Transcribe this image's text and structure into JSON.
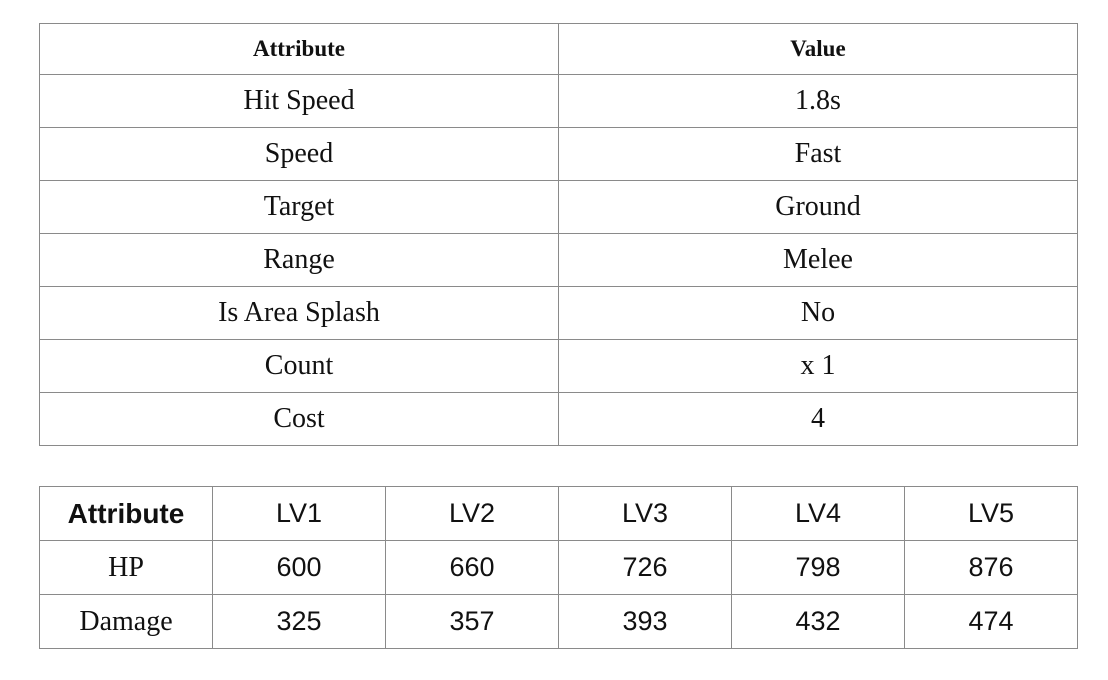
{
  "attributes_table": {
    "headers": [
      "Attribute",
      "Value"
    ],
    "rows": [
      [
        "Hit Speed",
        "1.8s"
      ],
      [
        "Speed",
        "Fast"
      ],
      [
        "Target",
        "Ground"
      ],
      [
        "Range",
        "Melee"
      ],
      [
        "Is Area Splash",
        "No"
      ],
      [
        "Count",
        "x 1"
      ],
      [
        "Cost",
        "4"
      ]
    ]
  },
  "levels_table": {
    "headers": [
      "Attribute",
      "LV1",
      "LV2",
      "LV3",
      "LV4",
      "LV5"
    ],
    "rows": [
      [
        "HP",
        "600",
        "660",
        "726",
        "798",
        "876"
      ],
      [
        "Damage",
        "325",
        "357",
        "393",
        "432",
        "474"
      ]
    ]
  }
}
